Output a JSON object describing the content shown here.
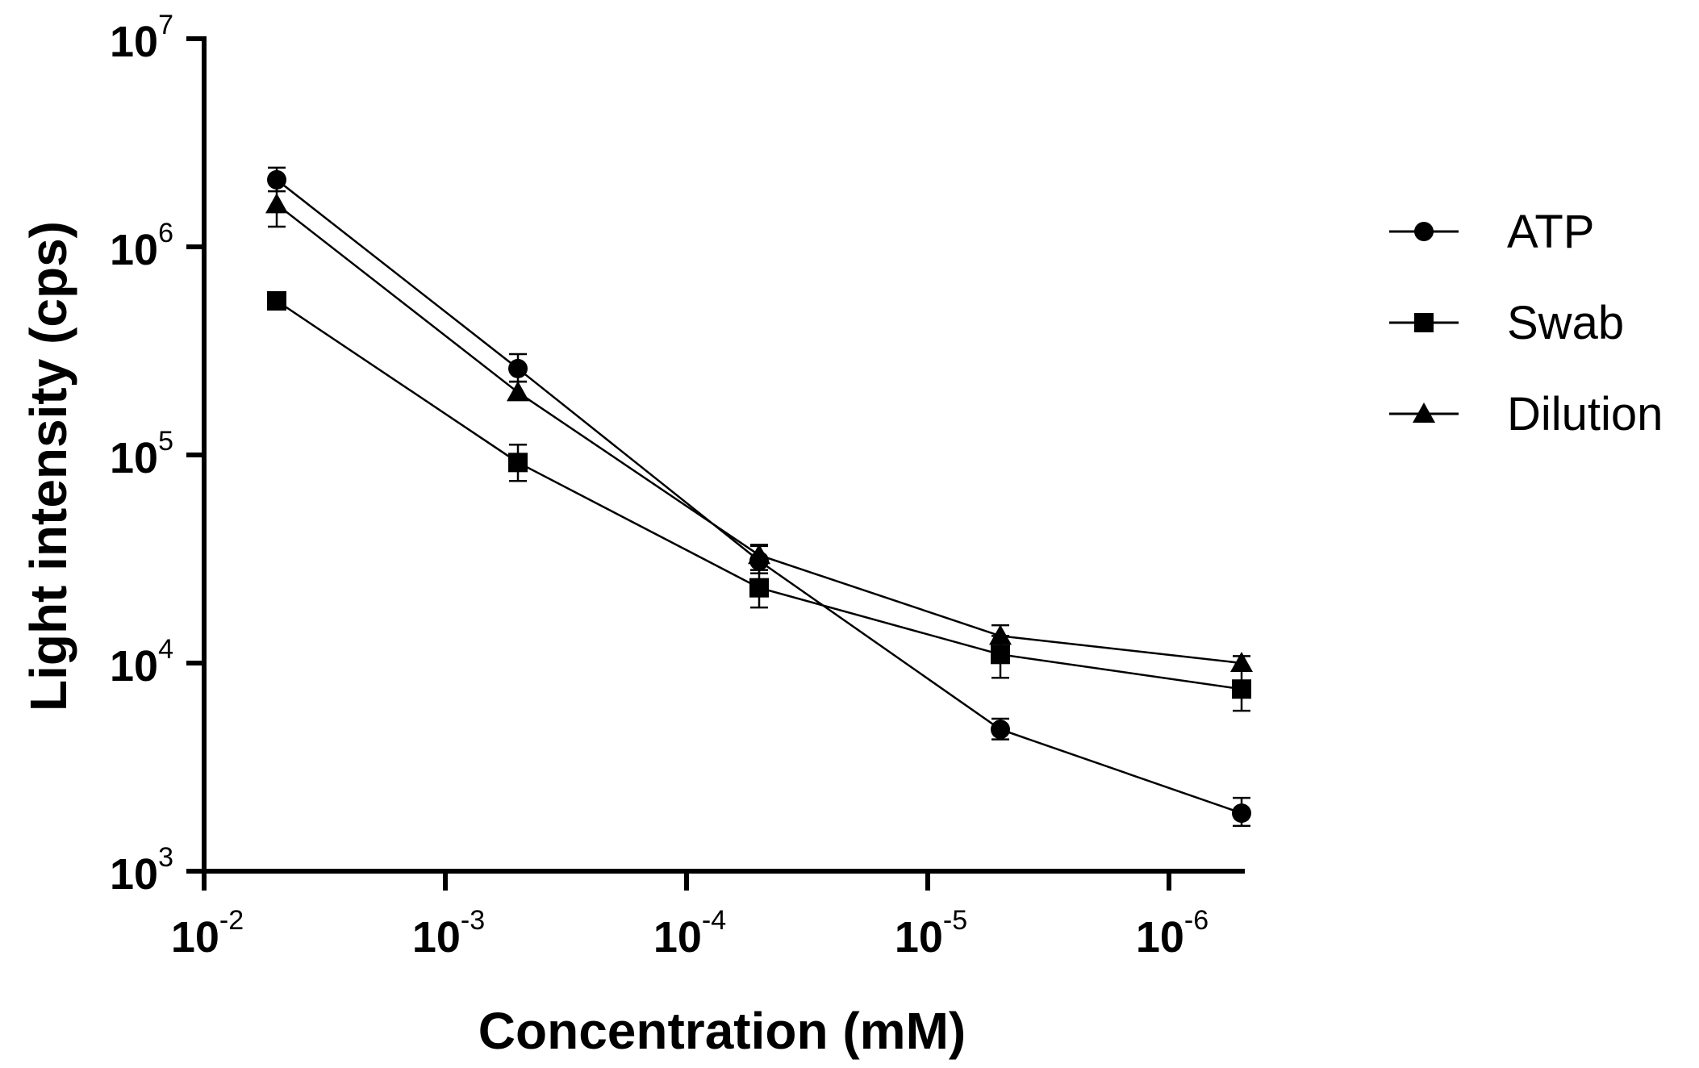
{
  "chart_data": {
    "type": "line",
    "title": "",
    "xlabel": "Concentration (mM)",
    "ylabel": "Light intensity (cps)",
    "x_scale": "log",
    "x_reversed": true,
    "y_scale": "log",
    "xlim": [
      0.01,
      5e-07
    ],
    "ylim": [
      1000,
      10000000
    ],
    "x_ticks": [
      {
        "value": 0.01,
        "base": "10",
        "exp": "-2"
      },
      {
        "value": 0.001,
        "base": "10",
        "exp": "-3"
      },
      {
        "value": 0.0001,
        "base": "10",
        "exp": "-4"
      },
      {
        "value": 1e-05,
        "base": "10",
        "exp": "-5"
      },
      {
        "value": 1e-06,
        "base": "10",
        "exp": "-6"
      }
    ],
    "y_ticks": [
      {
        "value": 1000,
        "base": "10",
        "exp": "3"
      },
      {
        "value": 10000,
        "base": "10",
        "exp": "4"
      },
      {
        "value": 100000,
        "base": "10",
        "exp": "5"
      },
      {
        "value": 1000000,
        "base": "10",
        "exp": "6"
      },
      {
        "value": 10000000,
        "base": "10",
        "exp": "7"
      }
    ],
    "x": [
      0.005,
      0.0005,
      5e-05,
      5e-06,
      5e-07
    ],
    "series": [
      {
        "name": "ATP",
        "marker": "circle",
        "values": [
          2100000,
          260000,
          31000,
          4800,
          1900
        ],
        "err_low": [
          1850000,
          225000,
          27000,
          4300,
          1650
        ],
        "err_high": [
          2400000,
          305000,
          37000,
          5400,
          2250
        ]
      },
      {
        "name": "Swab",
        "marker": "square",
        "values": [
          550000,
          92000,
          23000,
          11000,
          7500
        ],
        "err_low": [
          530000,
          75000,
          18500,
          8500,
          5900
        ],
        "err_high": [
          570000,
          112000,
          28000,
          13500,
          9300
        ]
      },
      {
        "name": "Dilution",
        "marker": "triangle",
        "values": [
          1600000,
          200000,
          33000,
          13500,
          10000
        ],
        "err_low": [
          1250000,
          185000,
          30000,
          12000,
          9400
        ],
        "err_high": [
          2050000,
          225000,
          36500,
          15200,
          10800
        ]
      }
    ],
    "legend": {
      "position": "right",
      "entries": [
        "ATP",
        "Swab",
        "Dilution"
      ]
    }
  }
}
